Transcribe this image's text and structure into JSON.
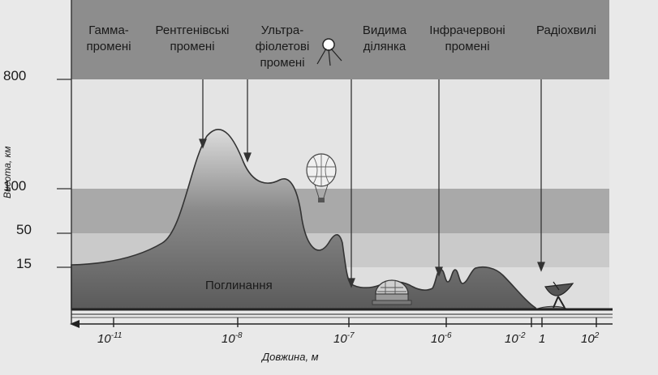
{
  "bands": [
    {
      "id": "gamma",
      "lines": [
        "Гамма-",
        "промені"
      ]
    },
    {
      "id": "xray",
      "lines": [
        "Рентгенівські",
        "промені"
      ]
    },
    {
      "id": "uv",
      "lines": [
        "Ультра-",
        "фіолетові",
        "промені"
      ]
    },
    {
      "id": "visible",
      "lines": [
        "Видима",
        "ділянка"
      ]
    },
    {
      "id": "ir",
      "lines": [
        "Інфрачервоні",
        "промені"
      ]
    },
    {
      "id": "radio",
      "lines": [
        "Радіохвилі"
      ]
    }
  ],
  "y_axis": {
    "label": "Висота, км",
    "ticks": [
      "800",
      "100",
      "50",
      "15"
    ]
  },
  "x_axis": {
    "label": "Довжина, м",
    "ticks": [
      {
        "base": "10",
        "exp": "-11"
      },
      {
        "base": "10",
        "exp": "-8"
      },
      {
        "base": "10",
        "exp": "-7"
      },
      {
        "base": "10",
        "exp": "-6"
      },
      {
        "base": "10",
        "exp": "-2"
      },
      {
        "base": "1",
        "exp": ""
      },
      {
        "base": "10",
        "exp": "2"
      }
    ]
  },
  "absorption_label": "Поглинання",
  "colors": {
    "bg": "#e9e9e9",
    "top_band": "#8f8f8f",
    "mid_band": "#b0b0b0",
    "low_band": "#cfcfcf",
    "terrain": "#8a8a8a"
  }
}
